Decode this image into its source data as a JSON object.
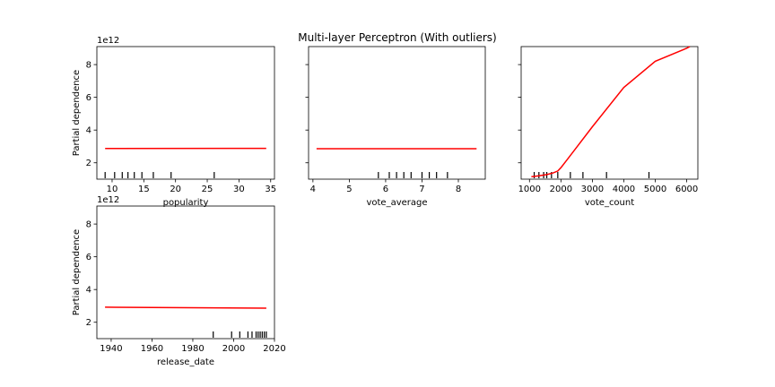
{
  "figure": {
    "title": "Multi-layer Perceptron (With outliers)"
  },
  "chart_data": [
    {
      "type": "line",
      "xlabel": "popularity",
      "ylabel": "Partial dependence",
      "offset_label": "1e12",
      "xlim": [
        7.6,
        35.6
      ],
      "ylim": [
        1.0,
        9.1
      ],
      "xticks": [
        10,
        15,
        20,
        25,
        30,
        35
      ],
      "yticks": [
        2,
        4,
        6,
        8
      ],
      "show_ytick_labels": true,
      "series": [
        {
          "color": "#ff0000",
          "x": [
            8.9,
            34.3
          ],
          "y": [
            2.87,
            2.88
          ]
        }
      ],
      "rug": [
        8.9,
        10.4,
        11.6,
        12.5,
        13.5,
        14.7,
        16.5,
        19.3,
        26.1
      ]
    },
    {
      "type": "line",
      "xlabel": "vote_average",
      "ylabel": "",
      "offset_label": "",
      "xlim": [
        3.88,
        8.74
      ],
      "ylim": [
        1.0,
        9.1
      ],
      "xticks": [
        4,
        5,
        6,
        7,
        8
      ],
      "yticks": [
        2,
        4,
        6,
        8
      ],
      "show_ytick_labels": false,
      "series": [
        {
          "color": "#ff0000",
          "x": [
            4.1,
            8.5
          ],
          "y": [
            2.86,
            2.86
          ]
        }
      ],
      "rug": [
        5.8,
        6.1,
        6.3,
        6.5,
        6.7,
        7.0,
        7.2,
        7.4,
        7.7
      ]
    },
    {
      "type": "line",
      "xlabel": "vote_count",
      "ylabel": "",
      "offset_label": "",
      "xlim": [
        735,
        6355
      ],
      "ylim": [
        1.0,
        9.1
      ],
      "xticks": [
        1000,
        2000,
        3000,
        4000,
        5000,
        6000
      ],
      "yticks": [
        2,
        4,
        6,
        8
      ],
      "show_ytick_labels": false,
      "series": [
        {
          "color": "#ff0000",
          "x": [
            1060,
            1300,
            1550,
            1750,
            1900,
            2000,
            2200,
            3000,
            4000,
            5000,
            6000,
            6100
          ],
          "y": [
            1.15,
            1.2,
            1.28,
            1.38,
            1.5,
            1.7,
            2.2,
            4.2,
            6.6,
            8.2,
            9.0,
            9.1
          ]
        }
      ],
      "rug": [
        1150,
        1300,
        1450,
        1550,
        1700,
        1900,
        2300,
        2700,
        3450,
        4800
      ]
    },
    {
      "type": "line",
      "xlabel": "release_date",
      "ylabel": "Partial dependence",
      "offset_label": "1e12",
      "xlim": [
        1933,
        2020
      ],
      "ylim": [
        1.0,
        9.1
      ],
      "xticks": [
        1940,
        1960,
        1980,
        2000,
        2020
      ],
      "yticks": [
        2,
        4,
        6,
        8
      ],
      "show_ytick_labels": true,
      "series": [
        {
          "color": "#ff0000",
          "x": [
            1937,
            2016
          ],
          "y": [
            2.92,
            2.86
          ]
        }
      ],
      "rug": [
        1990,
        1999,
        2003,
        2007,
        2009,
        2011,
        2012,
        2013,
        2014,
        2015,
        2016
      ]
    }
  ]
}
